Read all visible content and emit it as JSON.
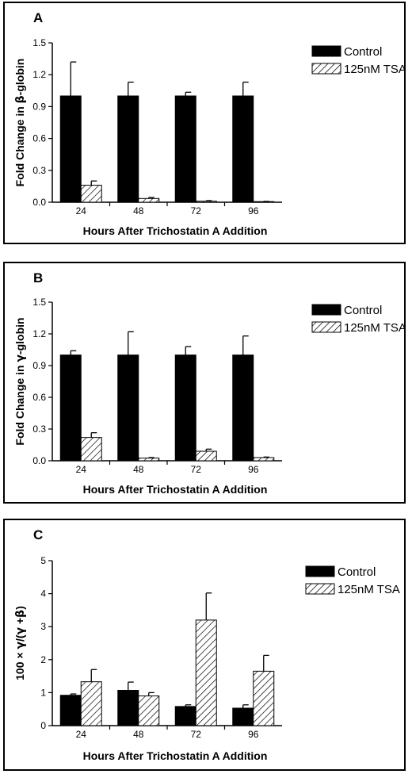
{
  "colors": {
    "control": "#000000",
    "tsa_hatch": "#000000",
    "background": "#ffffff"
  },
  "chart_data": [
    {
      "type": "bar",
      "panel": "A",
      "ylabel_parts": [
        "Fold Change in ",
        "β",
        "-globin"
      ],
      "xlabel": "Hours After Trichostatin A Addition",
      "categories": [
        "24",
        "48",
        "72",
        "96"
      ],
      "yticks": [
        "0.0",
        "0.3",
        "0.6",
        "0.9",
        "1.2",
        "1.5"
      ],
      "ylim": [
        0,
        1.5
      ],
      "legend_position": "top-right",
      "series": [
        {
          "name": "Control",
          "values": [
            1.0,
            1.0,
            1.0,
            1.0
          ],
          "errors": [
            0.32,
            0.13,
            0.035,
            0.13
          ],
          "pattern": "solid"
        },
        {
          "name": "125nM TSA",
          "values": [
            0.16,
            0.035,
            0.01,
            0.005
          ],
          "errors": [
            0.04,
            0.01,
            0.005,
            0.003
          ],
          "pattern": "hatch"
        }
      ]
    },
    {
      "type": "bar",
      "panel": "B",
      "ylabel_parts": [
        "Fold Change in ",
        "γ",
        "-globin"
      ],
      "xlabel": "Hours After Trichostatin A Addition",
      "categories": [
        "24",
        "48",
        "72",
        "96"
      ],
      "yticks": [
        "0.0",
        "0.3",
        "0.6",
        "0.9",
        "1.2",
        "1.5"
      ],
      "ylim": [
        0,
        1.5
      ],
      "legend_position": "top-right",
      "series": [
        {
          "name": "Control",
          "values": [
            1.0,
            1.0,
            1.0,
            1.0
          ],
          "errors": [
            0.04,
            0.22,
            0.08,
            0.18
          ],
          "pattern": "solid"
        },
        {
          "name": "125nM TSA",
          "values": [
            0.22,
            0.025,
            0.09,
            0.03
          ],
          "errors": [
            0.045,
            0.005,
            0.02,
            0.005
          ],
          "pattern": "hatch"
        }
      ]
    },
    {
      "type": "bar",
      "panel": "C",
      "ylabel_parts": [
        "100",
        " × ",
        "γ",
        "/(",
        "γ",
        " +",
        "β",
        ")"
      ],
      "xlabel": "Hours After Trichostatin A Addition",
      "categories": [
        "24",
        "48",
        "72",
        "96"
      ],
      "yticks": [
        "0",
        "1",
        "2",
        "3",
        "4",
        "5"
      ],
      "ylim": [
        0,
        5
      ],
      "legend_position": "top-right",
      "series": [
        {
          "name": "Control",
          "values": [
            0.92,
            1.07,
            0.58,
            0.53
          ],
          "errors": [
            0.04,
            0.25,
            0.05,
            0.1
          ],
          "pattern": "solid"
        },
        {
          "name": "125nM TSA",
          "values": [
            1.33,
            0.9,
            3.2,
            1.65
          ],
          "errors": [
            0.37,
            0.1,
            0.82,
            0.48
          ],
          "pattern": "hatch"
        }
      ]
    }
  ]
}
